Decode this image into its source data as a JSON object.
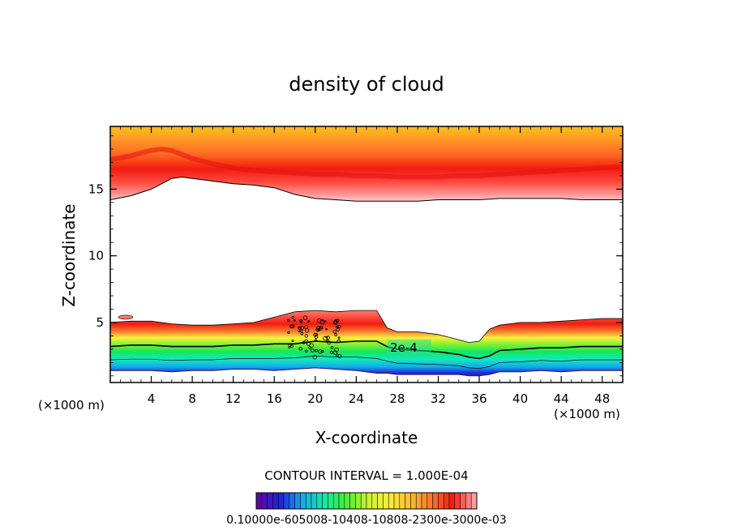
{
  "chart_data": {
    "type": "contour",
    "title": "density of cloud",
    "xlabel": "X-coordinate",
    "ylabel": "Z-coordinate",
    "x_unit_label": "(×1000 m)",
    "x_unit_label_right": "(×1000 m)",
    "xlim": [
      0,
      50
    ],
    "ylim": [
      0.5,
      19.7
    ],
    "x_ticks": [
      4,
      8,
      12,
      16,
      20,
      24,
      28,
      32,
      36,
      40,
      44,
      48
    ],
    "y_ticks": [
      5,
      10,
      15
    ],
    "contour_label": "2e-4",
    "contour_interval_text": "CONTOUR INTERVAL = 1.000E-04",
    "colorbar_text": "0.10000e-605008-10408-10808-2300e-3000e-03",
    "colorbar_range": [
      0.0001,
      0.0003
    ],
    "colormap": [
      "#5a0aa0",
      "#1f24d8",
      "#16a9e8",
      "#13e8a8",
      "#3ef038",
      "#c8f030",
      "#f8f03c",
      "#f8c030",
      "#f87830",
      "#f21c12",
      "#ff9f9f"
    ],
    "upper_layer": {
      "x": [
        0,
        2,
        4,
        5,
        6,
        7,
        8,
        10,
        12,
        14,
        16,
        18,
        20,
        22,
        24,
        26,
        28,
        30,
        32,
        34,
        36,
        38,
        40,
        42,
        44,
        46,
        48,
        50
      ],
      "base_z": [
        14.2,
        14.5,
        15.0,
        15.4,
        15.8,
        15.9,
        15.8,
        15.6,
        15.4,
        15.3,
        15.1,
        14.6,
        14.3,
        14.2,
        14.1,
        14.1,
        14.1,
        14.1,
        14.2,
        14.2,
        14.2,
        14.3,
        14.3,
        14.3,
        14.3,
        14.2,
        14.2,
        14.2
      ],
      "core_z": [
        17.2,
        17.5,
        17.9,
        18.0,
        17.9,
        17.6,
        17.3,
        16.9,
        16.6,
        16.4,
        16.3,
        16.2,
        16.1,
        16.1,
        16.0,
        16.0,
        15.9,
        15.9,
        15.9,
        16.0,
        16.0,
        16.1,
        16.2,
        16.3,
        16.4,
        16.5,
        16.6,
        16.7
      ]
    },
    "lower_layer": {
      "x": [
        0,
        2,
        4,
        6,
        8,
        10,
        12,
        14,
        16,
        18,
        20,
        22,
        24,
        26,
        27,
        28,
        30,
        32,
        34,
        35,
        36,
        37,
        38,
        40,
        42,
        44,
        46,
        48,
        50
      ],
      "top_z": [
        5.0,
        5.1,
        5.1,
        4.9,
        4.8,
        4.8,
        4.9,
        5.0,
        5.4,
        5.8,
        5.9,
        5.8,
        5.9,
        5.9,
        4.6,
        4.3,
        4.3,
        4.1,
        3.7,
        3.5,
        3.6,
        4.5,
        4.8,
        5.0,
        5.0,
        5.1,
        5.2,
        5.3,
        5.3
      ],
      "contour_2e4_z": [
        3.2,
        3.3,
        3.3,
        3.2,
        3.2,
        3.2,
        3.3,
        3.3,
        3.4,
        3.4,
        3.6,
        3.5,
        3.6,
        3.6,
        3.2,
        3.0,
        2.9,
        2.8,
        2.6,
        2.4,
        2.3,
        2.5,
        2.9,
        3.0,
        3.1,
        3.1,
        3.2,
        3.2,
        3.2
      ],
      "bottom_z": [
        1.4,
        1.4,
        1.4,
        1.3,
        1.4,
        1.4,
        1.5,
        1.5,
        1.4,
        1.5,
        1.6,
        1.5,
        1.4,
        1.2,
        1.2,
        1.1,
        1.1,
        1.1,
        1.1,
        1.0,
        1.0,
        1.1,
        1.3,
        1.3,
        1.4,
        1.3,
        1.4,
        1.4,
        1.4
      ]
    }
  }
}
